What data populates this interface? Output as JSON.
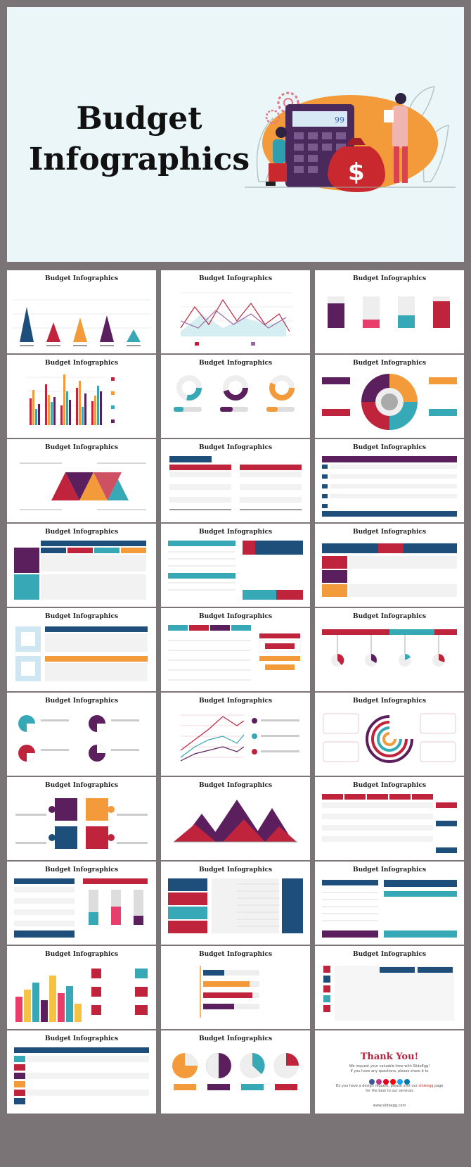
{
  "hero": {
    "title_line1": "Budget",
    "title_line2": "Infographics",
    "calculator_display": "99",
    "bag_symbol": "$"
  },
  "slide_title": "Budget Infographics",
  "slides": [
    {
      "title": "Budget Infographics"
    },
    {
      "title": "Budget Infographics"
    },
    {
      "title": "Budget Infographics"
    },
    {
      "title": "Budget Infographics"
    },
    {
      "title": "Budget Infographics"
    },
    {
      "title": "Budget Infographics"
    },
    {
      "title": "Budget Infographics"
    },
    {
      "title": "Budget Infographics"
    },
    {
      "title": "Budget Infographics"
    },
    {
      "title": "Budget Infographics"
    },
    {
      "title": "Budget Infographics"
    },
    {
      "title": "Budget Infographics"
    },
    {
      "title": "Budget Infographics"
    },
    {
      "title": "Budget Infographics"
    },
    {
      "title": "Budget Infographics"
    },
    {
      "title": "Budget Infographics"
    },
    {
      "title": "Budget Infographics"
    },
    {
      "title": "Budget Infographics"
    },
    {
      "title": "Budget Infographics"
    },
    {
      "title": "Budget Infographics"
    },
    {
      "title": "Budget Infographics"
    },
    {
      "title": "Budget Infographics"
    },
    {
      "title": "Budget Infographics"
    },
    {
      "title": "Budget Infographics"
    },
    {
      "title": "Budget Infographics"
    },
    {
      "title": "Budget Infographics"
    },
    {
      "title": "Budget Infographics"
    },
    {
      "title": "Budget Infographics"
    },
    {
      "title": "Budget Infographics"
    },
    {
      "title": "Budget Infographics"
    }
  ],
  "thank_you": {
    "title": "Thank You!",
    "line1": "We request your valuable time with SlideEgg!",
    "line2": "If you have any questions, please share it to",
    "line3": "Do you have a design request, please visit our",
    "line3_link": "slideegg",
    "line3_end": "page",
    "line4": "for the best to our services",
    "url": "www.slideegg.com"
  },
  "colors": {
    "navy": "#1d4f7a",
    "purple": "#5b1f5e",
    "red": "#c0243c",
    "teal": "#37a8b5",
    "orange": "#f39a3b",
    "hero_bg": "#eaf6f8",
    "frame": "#7a7476"
  }
}
